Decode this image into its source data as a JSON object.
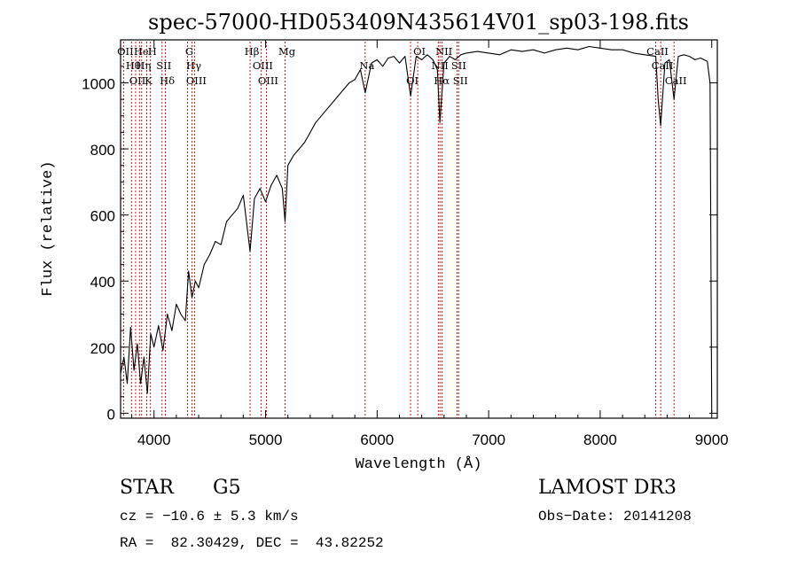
{
  "chart_data": {
    "type": "line",
    "title": "spec-57000-HD053409N435614V01_sp03-198.fits",
    "xlabel": "Wavelength (Å)",
    "ylabel": "Flux (relative)",
    "xlim": [
      3700,
      9050
    ],
    "ylim": [
      -15,
      1130
    ],
    "xticks": [
      4000,
      5000,
      6000,
      7000,
      8000,
      9000
    ],
    "yticks": [
      0,
      200,
      400,
      600,
      800,
      1000
    ],
    "series": [
      {
        "name": "spectrum",
        "x": [
          3700,
          3730,
          3760,
          3790,
          3820,
          3850,
          3880,
          3910,
          3940,
          3970,
          4000,
          4040,
          4080,
          4120,
          4160,
          4200,
          4240,
          4280,
          4310,
          4340,
          4370,
          4400,
          4450,
          4500,
          4550,
          4600,
          4650,
          4700,
          4750,
          4800,
          4861,
          4900,
          4950,
          5000,
          5050,
          5100,
          5150,
          5175,
          5200,
          5250,
          5300,
          5350,
          5400,
          5450,
          5500,
          5550,
          5600,
          5650,
          5700,
          5750,
          5800,
          5850,
          5893,
          5950,
          6000,
          6050,
          6100,
          6150,
          6200,
          6250,
          6300,
          6350,
          6400,
          6450,
          6500,
          6540,
          6563,
          6600,
          6650,
          6700,
          6750,
          6800,
          6900,
          7000,
          7100,
          7200,
          7300,
          7400,
          7500,
          7600,
          7700,
          7800,
          7900,
          8000,
          8100,
          8200,
          8300,
          8400,
          8498,
          8520,
          8542,
          8580,
          8620,
          8662,
          8700,
          8750,
          8800,
          8850,
          8900,
          8960,
          8985,
          9000
        ],
        "y": [
          120,
          170,
          90,
          260,
          130,
          210,
          90,
          170,
          60,
          240,
          200,
          265,
          190,
          300,
          250,
          330,
          300,
          280,
          430,
          350,
          400,
          380,
          450,
          480,
          520,
          510,
          580,
          600,
          620,
          660,
          490,
          650,
          680,
          640,
          690,
          720,
          680,
          580,
          750,
          780,
          800,
          820,
          850,
          880,
          900,
          920,
          940,
          960,
          980,
          1000,
          1010,
          1040,
          970,
          1060,
          1070,
          1050,
          1075,
          1080,
          1060,
          1080,
          960,
          1080,
          1070,
          1085,
          1070,
          1040,
          880,
          1060,
          1080,
          1070,
          1085,
          1090,
          1095,
          1090,
          1085,
          1100,
          1095,
          1100,
          1090,
          1100,
          1105,
          1100,
          1110,
          1105,
          1100,
          1100,
          1090,
          1085,
          1080,
          950,
          870,
          1060,
          1070,
          950,
          1080,
          1085,
          1080,
          1070,
          1075,
          1065,
          1000,
          0
        ]
      }
    ],
    "lines": [
      {
        "x": 3727,
        "label": "OII"
      },
      {
        "x": 3798,
        "label": "Hθ"
      },
      {
        "x": 3835,
        "label": "OII"
      },
      {
        "x": 3869,
        "label": "He"
      },
      {
        "x": 3889,
        "label": "Hη"
      },
      {
        "x": 3934,
        "label": "K"
      },
      {
        "x": 3968,
        "label": "H"
      },
      {
        "x": 4072,
        "label": "SII"
      },
      {
        "x": 4102,
        "label": "Hδ"
      },
      {
        "x": 4300,
        "label": "G"
      },
      {
        "x": 4340,
        "label": "Hγ"
      },
      {
        "x": 4363,
        "label": "OIII"
      },
      {
        "x": 4861,
        "label": "Hβ"
      },
      {
        "x": 4959,
        "label": "OIII"
      },
      {
        "x": 5007,
        "label": "OIII"
      },
      {
        "x": 5175,
        "label": "Mg"
      },
      {
        "x": 5893,
        "label": "Na"
      },
      {
        "x": 6300,
        "label": "OI"
      },
      {
        "x": 6364,
        "label": "OI"
      },
      {
        "x": 6548,
        "label": "NII"
      },
      {
        "x": 6563,
        "label": "Hα"
      },
      {
        "x": 6583,
        "label": "NII"
      },
      {
        "x": 6716,
        "label": "SII"
      },
      {
        "x": 6731,
        "label": "SII"
      },
      {
        "x": 8498,
        "label": "CaII"
      },
      {
        "x": 8542,
        "label": "CaII"
      },
      {
        "x": 8662,
        "label": "CaII"
      }
    ]
  },
  "info": {
    "object_class": "STAR",
    "subclass": "G5",
    "survey": "LAMOST DR3",
    "cz": "cz = −10.6 ± 5.3 km/s",
    "obs_date": "Obs−Date: 20141208",
    "coords": "RA =  82.30429, DEC =  43.82252"
  }
}
